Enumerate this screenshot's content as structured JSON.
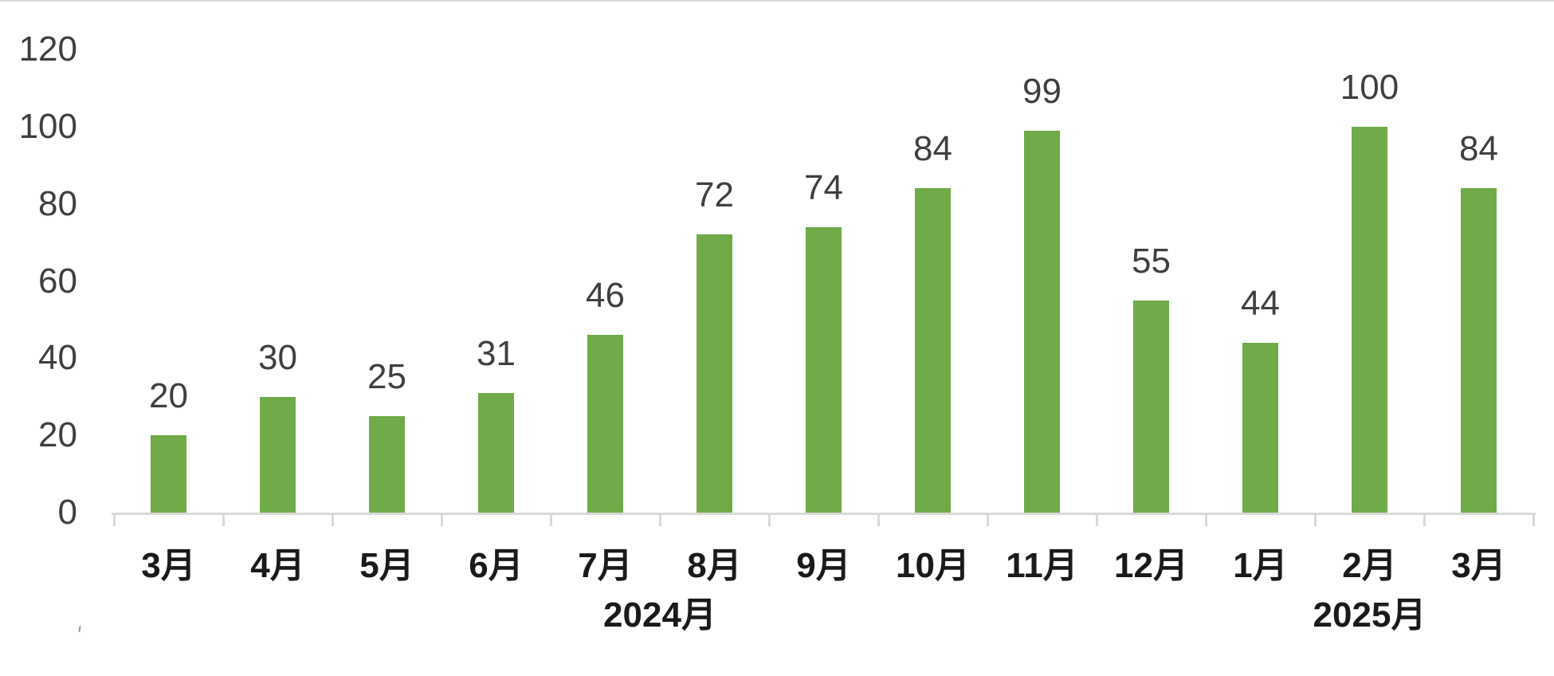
{
  "chart_data": {
    "type": "bar",
    "title": "",
    "xlabel": "",
    "ylabel": "",
    "categories": [
      "3月",
      "4月",
      "5月",
      "6月",
      "7月",
      "8月",
      "9月",
      "10月",
      "11月",
      "12月",
      "1月",
      "2月",
      "3月"
    ],
    "values": [
      20,
      30,
      25,
      31,
      46,
      72,
      74,
      84,
      99,
      55,
      44,
      100,
      84
    ],
    "data_labels": [
      "20",
      "30",
      "25",
      "31",
      "46",
      "72",
      "74",
      "84",
      "99",
      "55",
      "44",
      "100",
      "84"
    ],
    "year_groups": [
      {
        "label": "2024月",
        "start_index": 0,
        "end_index": 9
      },
      {
        "label": "2025月",
        "start_index": 10,
        "end_index": 12
      }
    ],
    "y_ticks": [
      120,
      100,
      80,
      60,
      40,
      20,
      0
    ],
    "ylim": [
      0,
      120
    ],
    "grid": "off",
    "legend": "none",
    "colors": {
      "bar": "#70aa49",
      "axis_line": "#d9d9d9",
      "value_text": "#3f3f3f",
      "category_text": "#1a1a1a"
    }
  }
}
